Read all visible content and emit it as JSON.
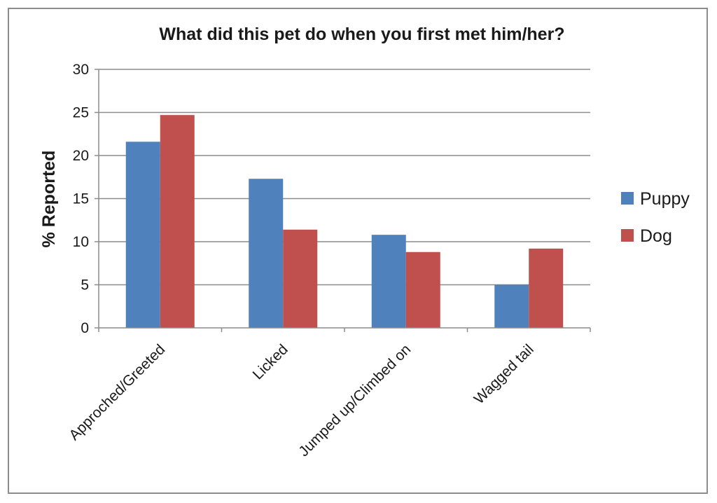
{
  "chart_data": {
    "type": "bar",
    "title": "What did this pet do when you first met him/her?",
    "xlabel": "",
    "ylabel": "% Reported",
    "categories": [
      "Approched/Greeted",
      "Licked",
      "Jumped up/Climbed on",
      "Wagged tail"
    ],
    "series": [
      {
        "name": "Puppy",
        "values": [
          21.6,
          17.3,
          10.8,
          5.0
        ],
        "color": "#4f81bd"
      },
      {
        "name": "Dog",
        "values": [
          24.7,
          11.4,
          8.8,
          9.2
        ],
        "color": "#c0504d"
      }
    ],
    "ylim": [
      0,
      30
    ],
    "yticks": [
      "0",
      "5",
      "10",
      "15",
      "20",
      "25",
      "30"
    ],
    "grid": true,
    "legend_position": "right"
  }
}
